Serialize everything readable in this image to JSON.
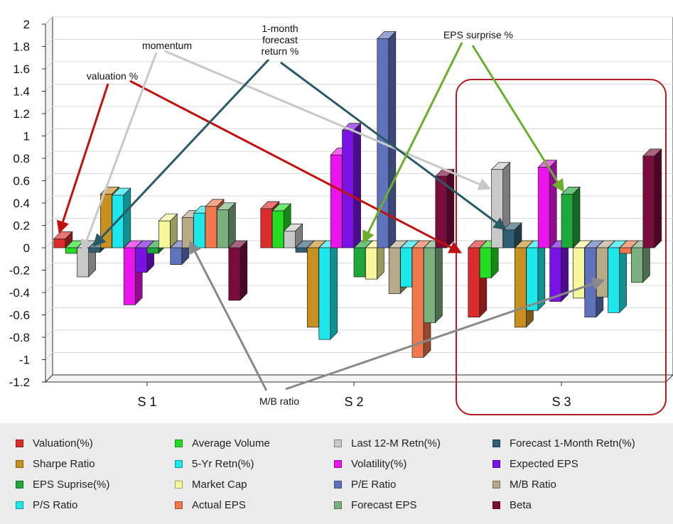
{
  "colors": {
    "Valuation(%)": "#dd2a2a",
    "Average Volume": "#22dd22",
    "Last 12-M Retn(%)": "#c8c8c8",
    "Forecast 1-Month Retn(%)": "#2e5f75",
    "Sharpe Ratio": "#c8901e",
    "5-Yr Retn(%)": "#1ce8ec",
    "Volatility(%)": "#ec14ec",
    "Expected EPS": "#7a12e6",
    "EPS Suprise(%)": "#1ea83c",
    "Market Cap": "#f6f69a",
    "P/E Ratio": "#5f72bc",
    "M/B Ratio": "#b7aa88",
    "P/S Ratio": "#1ce8ec",
    "Actual EPS": "#f0784a",
    "Forecast EPS": "#7ab07e",
    "Beta": "#7a0c3c"
  },
  "annotation_colors": {
    "valuation": "#c01010",
    "momentum": "#c8c8c8",
    "forecast": "#2a5a66",
    "eps": "#6aae2c",
    "mb": "#888888",
    "highlight": "#b21c24"
  },
  "chart_data": {
    "type": "bar",
    "categories": [
      "S 1",
      "S 2",
      "S 3"
    ],
    "ylim": [
      -1.2,
      2
    ],
    "y_ticks": [
      "2",
      "1.8",
      "1.6",
      "1.4",
      "1.2",
      "1",
      "0.8",
      "0.6",
      "0.4",
      "0.2",
      "0",
      "-0.2",
      "-0.4",
      "-0.6",
      "-0.8",
      "-1",
      "-1.2"
    ],
    "grid": true,
    "legend_position": "bottom",
    "series": [
      {
        "name": "Valuation(%)",
        "values": [
          0.08,
          0.35,
          -0.62
        ]
      },
      {
        "name": "Average Volume",
        "values": [
          -0.05,
          0.33,
          -0.27
        ]
      },
      {
        "name": "Last 12-M Retn(%)",
        "values": [
          -0.26,
          0.15,
          0.7
        ]
      },
      {
        "name": "Forecast 1-Month Retn(%)",
        "values": [
          -0.04,
          -0.04,
          0.16
        ]
      },
      {
        "name": "Sharpe Ratio",
        "values": [
          0.48,
          -0.71,
          -0.71
        ]
      },
      {
        "name": "5-Yr Retn(%)",
        "values": [
          0.47,
          -0.82,
          -0.56
        ]
      },
      {
        "name": "Volatility(%)",
        "values": [
          -0.51,
          0.83,
          0.72
        ]
      },
      {
        "name": "Expected EPS",
        "values": [
          -0.22,
          1.05,
          -0.48
        ]
      },
      {
        "name": "EPS Suprise(%)",
        "values": [
          -0.05,
          -0.26,
          0.48
        ]
      },
      {
        "name": "Market Cap",
        "values": [
          0.24,
          -0.28,
          -0.45
        ]
      },
      {
        "name": "P/E Ratio",
        "values": [
          -0.15,
          1.87,
          -0.62
        ]
      },
      {
        "name": "M/B Ratio",
        "values": [
          0.27,
          -0.41,
          -0.44
        ]
      },
      {
        "name": "P/S Ratio",
        "values": [
          0.31,
          -0.35,
          -0.58
        ]
      },
      {
        "name": "Actual EPS",
        "values": [
          0.37,
          -0.98,
          -0.05
        ]
      },
      {
        "name": "Forecast EPS",
        "values": [
          0.34,
          -0.67,
          -0.31
        ]
      },
      {
        "name": "Beta",
        "values": [
          -0.47,
          0.64,
          0.82
        ]
      }
    ],
    "annotations": [
      {
        "key": "valuation",
        "label": "valuation %"
      },
      {
        "key": "momentum",
        "label": "momentum"
      },
      {
        "key": "forecast",
        "label": "1-month\nforecast\nreturn %"
      },
      {
        "key": "eps",
        "label": "EPS surprise %"
      },
      {
        "key": "mb",
        "label": "M/B ratio"
      }
    ]
  }
}
